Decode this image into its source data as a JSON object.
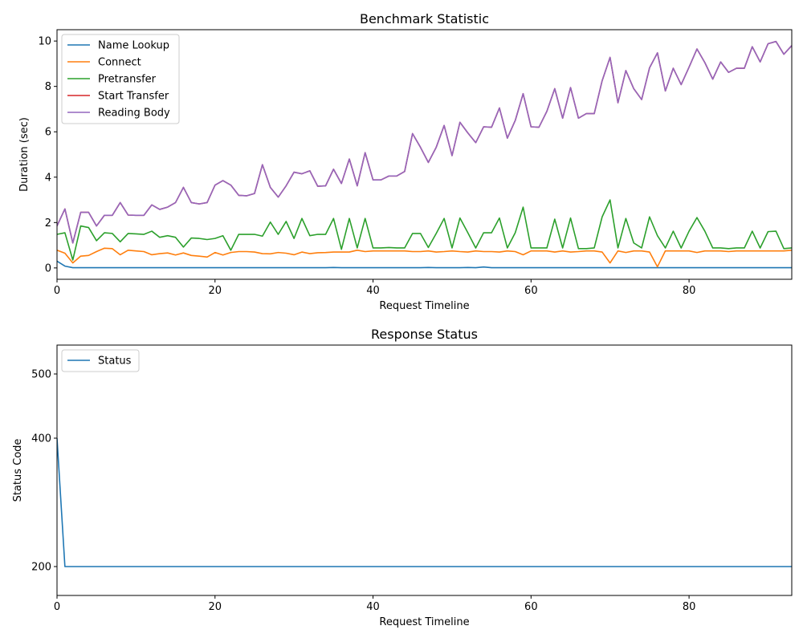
{
  "chart_data": [
    {
      "type": "line",
      "title": "Benchmark Statistic",
      "xlabel": "Request Timeline",
      "ylabel": "Duration (sec)",
      "xlim": [
        0,
        93
      ],
      "ylim": [
        -0.5,
        10.5
      ],
      "xticks": [
        0,
        20,
        40,
        60,
        80
      ],
      "yticks": [
        0,
        2,
        4,
        6,
        8,
        10
      ],
      "legend_position": "upper-left",
      "series": [
        {
          "name": "Name Lookup",
          "color": "#1f77b4",
          "values": [
            0.3,
            0.08,
            0.01,
            0.01,
            0.01,
            0.01,
            0.01,
            0.01,
            0.01,
            0.01,
            0.01,
            0.01,
            0.01,
            0.01,
            0.01,
            0.01,
            0.01,
            0.01,
            0.01,
            0.01,
            0.01,
            0.01,
            0.01,
            0.01,
            0.01,
            0.01,
            0.01,
            0.01,
            0.01,
            0.01,
            0.01,
            0.01,
            0.01,
            0.01,
            0.01,
            0.02,
            0.01,
            0.01,
            0.01,
            0.01,
            0.01,
            0.01,
            0.01,
            0.01,
            0.01,
            0.01,
            0.01,
            0.02,
            0.01,
            0.01,
            0.01,
            0.01,
            0.02,
            0.01,
            0.04,
            0.01,
            0.01,
            0.01,
            0.01,
            0.01,
            0.01,
            0.01,
            0.01,
            0.01,
            0.01,
            0.01,
            0.01,
            0.01,
            0.01,
            0.01,
            0.01,
            0.01,
            0.01,
            0.01,
            0.01,
            0.01,
            0.01,
            0.01,
            0.01,
            0.01,
            0.01,
            0.01,
            0.01,
            0.01,
            0.01,
            0.01,
            0.01,
            0.01,
            0.01,
            0.01,
            0.01,
            0.01,
            0.01,
            0.01
          ]
        },
        {
          "name": "Connect",
          "color": "#ff7f0e",
          "values": [
            0.78,
            0.65,
            0.22,
            0.52,
            0.55,
            0.72,
            0.87,
            0.85,
            0.58,
            0.78,
            0.75,
            0.72,
            0.58,
            0.63,
            0.66,
            0.57,
            0.66,
            0.55,
            0.52,
            0.48,
            0.68,
            0.57,
            0.68,
            0.72,
            0.72,
            0.7,
            0.63,
            0.62,
            0.68,
            0.65,
            0.58,
            0.7,
            0.63,
            0.67,
            0.68,
            0.7,
            0.7,
            0.7,
            0.78,
            0.72,
            0.75,
            0.75,
            0.75,
            0.75,
            0.75,
            0.72,
            0.72,
            0.75,
            0.7,
            0.72,
            0.75,
            0.72,
            0.7,
            0.75,
            0.72,
            0.72,
            0.7,
            0.75,
            0.72,
            0.58,
            0.75,
            0.75,
            0.75,
            0.7,
            0.75,
            0.7,
            0.72,
            0.75,
            0.75,
            0.7,
            0.22,
            0.75,
            0.68,
            0.75,
            0.75,
            0.7,
            0.05,
            0.75,
            0.75,
            0.75,
            0.75,
            0.68,
            0.75,
            0.75,
            0.75,
            0.72,
            0.75,
            0.75,
            0.75,
            0.75,
            0.75,
            0.75,
            0.75,
            0.78
          ]
        },
        {
          "name": "Pretransfer",
          "color": "#2ca02c",
          "values": [
            1.48,
            1.55,
            0.35,
            1.85,
            1.78,
            1.2,
            1.55,
            1.52,
            1.15,
            1.52,
            1.5,
            1.48,
            1.62,
            1.35,
            1.42,
            1.35,
            0.92,
            1.32,
            1.3,
            1.25,
            1.3,
            1.42,
            0.78,
            1.48,
            1.48,
            1.48,
            1.4,
            2.02,
            1.48,
            2.05,
            1.3,
            2.18,
            1.42,
            1.48,
            1.48,
            2.18,
            0.82,
            2.18,
            0.88,
            2.18,
            0.88,
            0.88,
            0.9,
            0.88,
            0.88,
            1.52,
            1.52,
            0.9,
            1.52,
            2.18,
            0.88,
            2.2,
            1.55,
            0.88,
            1.55,
            1.55,
            2.2,
            0.88,
            1.55,
            2.68,
            0.88,
            0.88,
            0.88,
            2.15,
            0.88,
            2.2,
            0.85,
            0.85,
            0.88,
            2.25,
            3.0,
            0.88,
            2.18,
            1.1,
            0.88,
            2.25,
            1.42,
            0.88,
            1.62,
            0.88,
            1.62,
            2.22,
            1.62,
            0.88,
            0.88,
            0.85,
            0.88,
            0.88,
            1.62,
            0.88,
            1.6,
            1.62,
            0.85,
            0.88
          ]
        },
        {
          "name": "Start Transfer",
          "color": "#d62728",
          "values": [
            1.85,
            2.6,
            1.1,
            2.45,
            2.45,
            1.85,
            2.32,
            2.32,
            2.88,
            2.33,
            2.32,
            2.32,
            2.78,
            2.58,
            2.68,
            2.88,
            3.55,
            2.88,
            2.82,
            2.88,
            3.65,
            3.85,
            3.65,
            3.2,
            3.18,
            3.28,
            4.55,
            3.55,
            3.12,
            3.62,
            4.22,
            4.15,
            4.28,
            3.6,
            3.62,
            4.35,
            3.72,
            4.8,
            3.62,
            5.08,
            3.88,
            3.88,
            4.05,
            4.05,
            4.25,
            5.92,
            5.32,
            4.65,
            5.32,
            6.28,
            4.95,
            6.42,
            5.95,
            5.52,
            6.22,
            6.2,
            7.05,
            5.72,
            6.5,
            7.68,
            6.22,
            6.2,
            6.9,
            7.9,
            6.6,
            7.95,
            6.6,
            6.8,
            6.8,
            8.25,
            9.28,
            7.28,
            8.7,
            7.9,
            7.42,
            8.82,
            9.48,
            7.8,
            8.8,
            8.08,
            8.85,
            9.65,
            9.05,
            8.32,
            9.08,
            8.62,
            8.8,
            8.8,
            9.75,
            9.08,
            9.88,
            9.98,
            9.42,
            9.8
          ]
        },
        {
          "name": "Reading Body",
          "color": "#9467bd",
          "values": [
            1.85,
            2.6,
            1.1,
            2.45,
            2.45,
            1.85,
            2.32,
            2.32,
            2.88,
            2.33,
            2.32,
            2.32,
            2.78,
            2.58,
            2.68,
            2.88,
            3.55,
            2.88,
            2.82,
            2.88,
            3.65,
            3.85,
            3.65,
            3.2,
            3.18,
            3.28,
            4.55,
            3.55,
            3.12,
            3.62,
            4.22,
            4.15,
            4.28,
            3.6,
            3.62,
            4.35,
            3.72,
            4.8,
            3.62,
            5.08,
            3.88,
            3.88,
            4.05,
            4.05,
            4.25,
            5.92,
            5.32,
            4.65,
            5.32,
            6.28,
            4.95,
            6.42,
            5.95,
            5.52,
            6.22,
            6.2,
            7.05,
            5.72,
            6.5,
            7.68,
            6.22,
            6.2,
            6.9,
            7.9,
            6.6,
            7.95,
            6.6,
            6.8,
            6.8,
            8.25,
            9.28,
            7.28,
            8.7,
            7.9,
            7.42,
            8.82,
            9.48,
            7.8,
            8.8,
            8.08,
            8.85,
            9.65,
            9.05,
            8.32,
            9.08,
            8.62,
            8.8,
            8.8,
            9.75,
            9.08,
            9.88,
            9.98,
            9.42,
            9.8
          ]
        }
      ]
    },
    {
      "type": "line",
      "title": "Response Status",
      "xlabel": "Request Timeline",
      "ylabel": "Status Code",
      "xlim": [
        0,
        93
      ],
      "ylim": [
        155,
        545
      ],
      "xticks": [
        0,
        20,
        40,
        60,
        80
      ],
      "yticks": [
        200,
        400,
        500
      ],
      "legend_position": "upper-left",
      "series": [
        {
          "name": "Status",
          "color": "#1f77b4",
          "values": [
            400,
            200,
            200,
            200,
            200,
            200,
            200,
            200,
            200,
            200,
            200,
            200,
            200,
            200,
            200,
            200,
            200,
            200,
            200,
            200,
            200,
            200,
            200,
            200,
            200,
            200,
            200,
            200,
            200,
            200,
            200,
            200,
            200,
            200,
            200,
            200,
            200,
            200,
            200,
            200,
            200,
            200,
            200,
            200,
            200,
            200,
            200,
            200,
            200,
            200,
            200,
            200,
            200,
            200,
            200,
            200,
            200,
            200,
            200,
            200,
            200,
            200,
            200,
            200,
            200,
            200,
            200,
            200,
            200,
            200,
            200,
            200,
            200,
            200,
            200,
            200,
            200,
            200,
            200,
            200,
            200,
            200,
            200,
            200,
            200,
            200,
            200,
            200,
            200,
            200,
            200,
            200,
            200,
            200
          ]
        }
      ]
    }
  ]
}
